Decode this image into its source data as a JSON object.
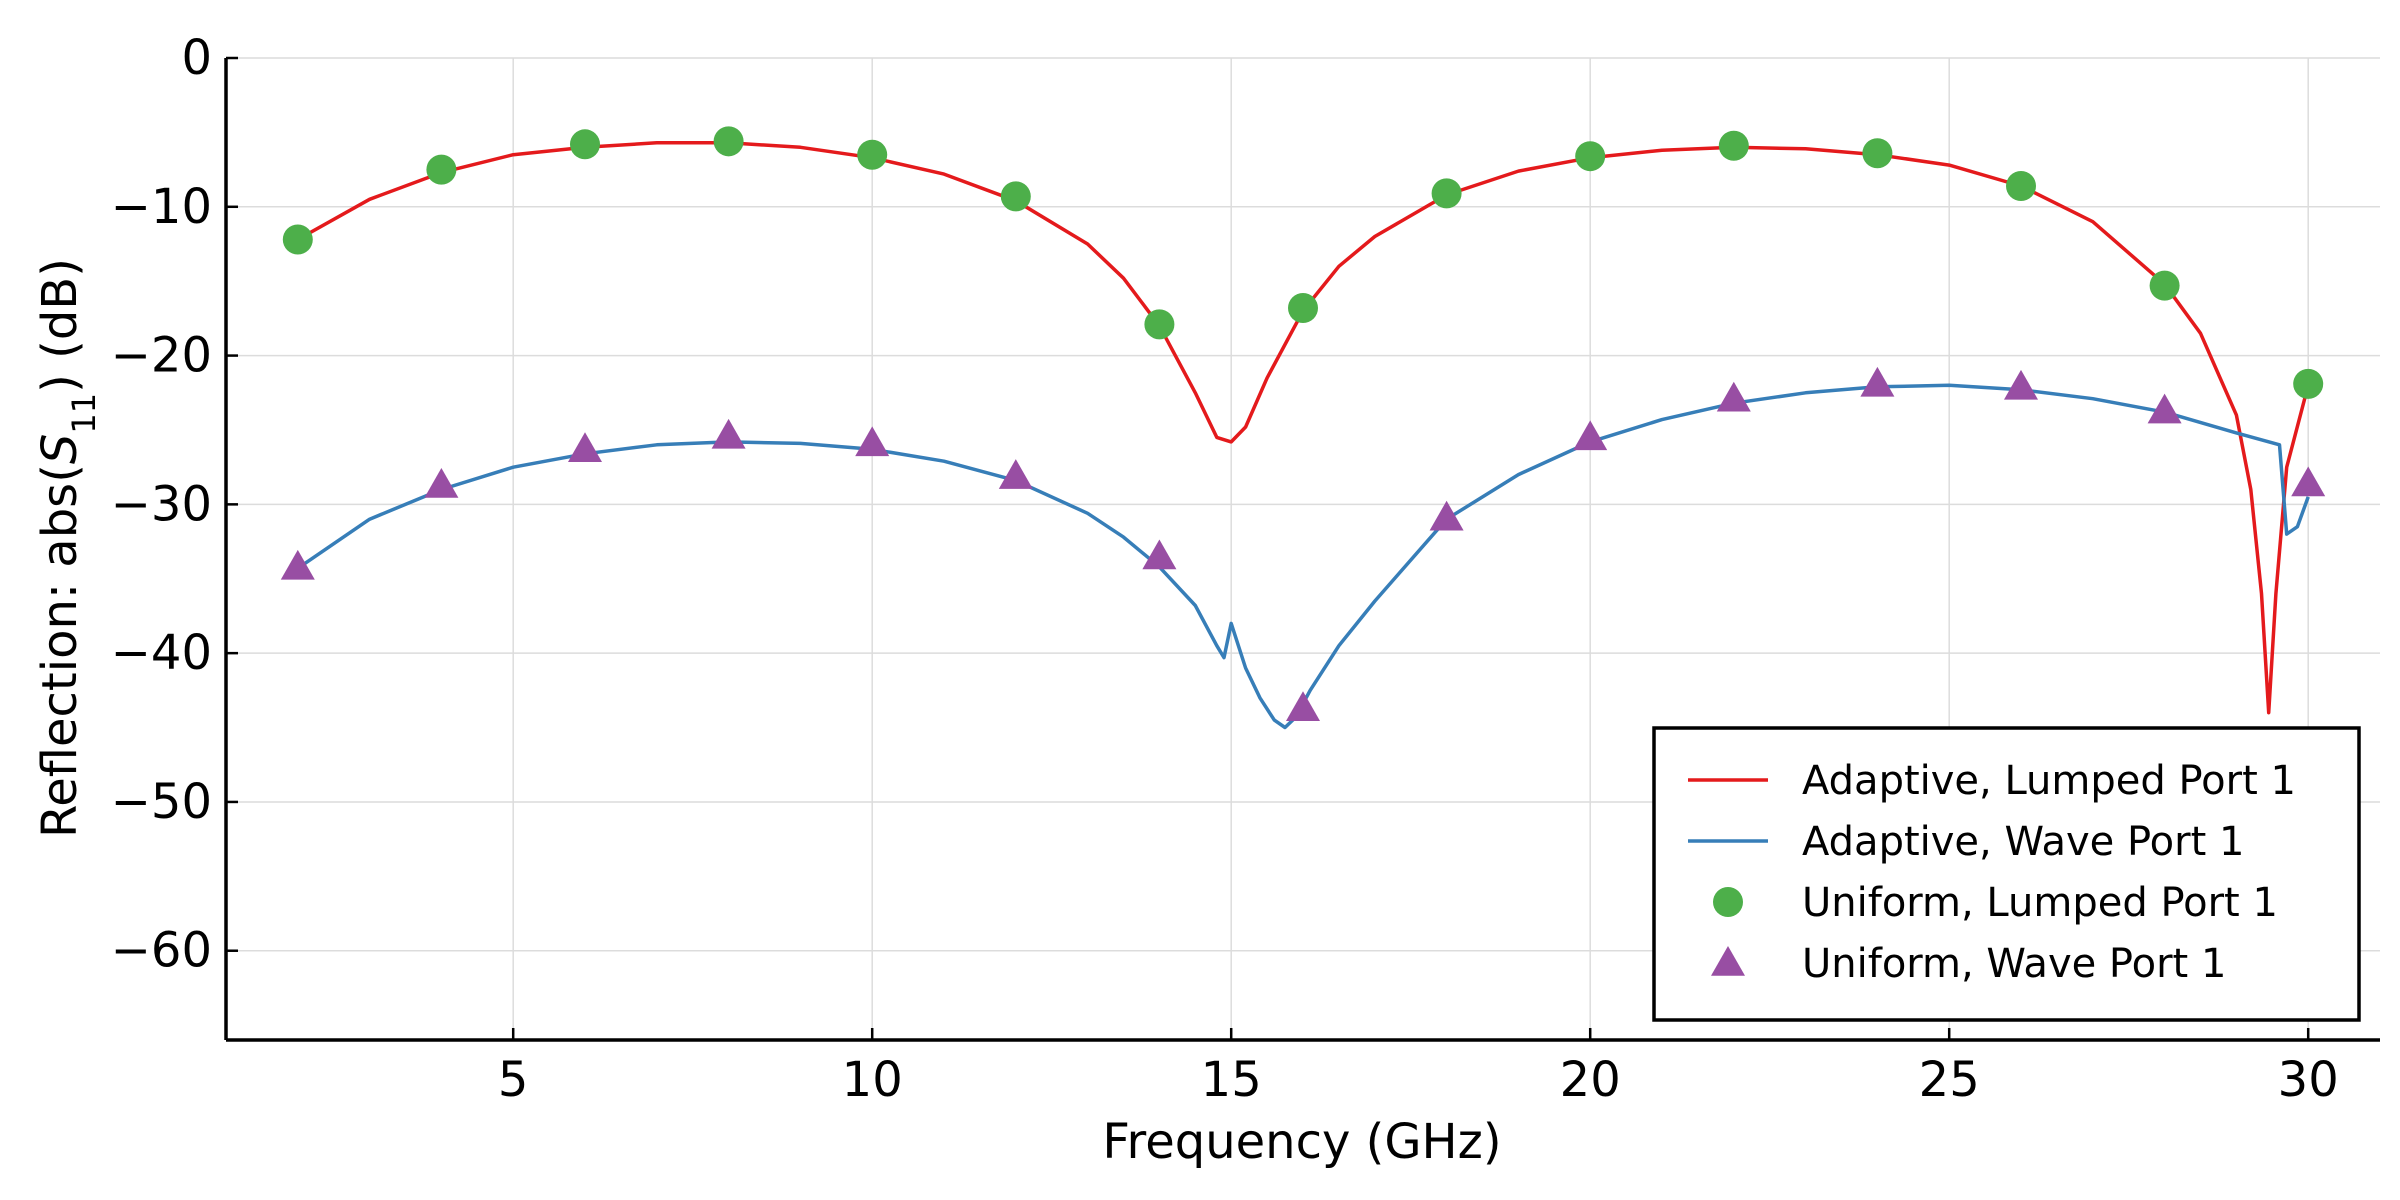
{
  "chart_data": {
    "type": "line",
    "xlabel": "Frequency  (GHz)",
    "ylabel_prefix": "Reflection: abs(",
    "ylabel_symbol": "S",
    "ylabel_subscript": "11",
    "ylabel_suffix": ")  (dB)",
    "xlim": [
      1,
      31
    ],
    "ylim": [
      -66,
      0
    ],
    "xticks": [
      5,
      10,
      15,
      20,
      25,
      30
    ],
    "yticks": [
      0,
      -10,
      -20,
      -30,
      -40,
      -50,
      -60
    ],
    "xtick_labels": [
      "5",
      "10",
      "15",
      "20",
      "25",
      "30"
    ],
    "ytick_labels": [
      "0",
      "−10",
      "−20",
      "−30",
      "−40",
      "−50",
      "−60"
    ],
    "grid": true,
    "legend_position": "bottom-right",
    "series": [
      {
        "name": "Adaptive, Lumped Port 1",
        "kind": "line",
        "color": "#e41a1c",
        "x": [
          2,
          3,
          4,
          5,
          6,
          7,
          8,
          9,
          10,
          11,
          12,
          13,
          13.5,
          14,
          14.5,
          14.8,
          15,
          15.2,
          15.5,
          16,
          16.5,
          17,
          18,
          19,
          20,
          21,
          22,
          23,
          24,
          25,
          26,
          27,
          28,
          28.5,
          29,
          29.2,
          29.35,
          29.45,
          29.55,
          29.7,
          30
        ],
        "y": [
          -12.2,
          -9.5,
          -7.7,
          -6.5,
          -6.0,
          -5.7,
          -5.7,
          -6.0,
          -6.7,
          -7.8,
          -9.6,
          -12.5,
          -14.8,
          -18.0,
          -22.5,
          -25.5,
          -25.8,
          -24.8,
          -21.5,
          -17.0,
          -14.0,
          -12.0,
          -9.2,
          -7.6,
          -6.7,
          -6.2,
          -6.0,
          -6.1,
          -6.5,
          -7.2,
          -8.6,
          -11.0,
          -15.2,
          -18.5,
          -24.0,
          -29.0,
          -36.0,
          -44.0,
          -36.0,
          -27.5,
          -22.0
        ]
      },
      {
        "name": "Adaptive, Wave Port 1",
        "kind": "line",
        "color": "#377eb8",
        "x": [
          2,
          3,
          4,
          5,
          6,
          7,
          8,
          9,
          10,
          11,
          12,
          13,
          13.5,
          14,
          14.5,
          14.8,
          14.9,
          15.0,
          15.2,
          15.4,
          15.6,
          15.75,
          15.9,
          16.1,
          16.5,
          17,
          18,
          19,
          20,
          21,
          22,
          23,
          24,
          25,
          26,
          27,
          28,
          29,
          29.6,
          29.7,
          29.85,
          30
        ],
        "y": [
          -34.3,
          -31.0,
          -29.0,
          -27.5,
          -26.6,
          -26.0,
          -25.8,
          -25.9,
          -26.3,
          -27.1,
          -28.4,
          -30.6,
          -32.2,
          -34.2,
          -36.8,
          -39.5,
          -40.3,
          -38.0,
          -41.0,
          -43.0,
          -44.5,
          -45.0,
          -44.3,
          -42.5,
          -39.5,
          -36.5,
          -31.0,
          -28.0,
          -25.8,
          -24.3,
          -23.2,
          -22.5,
          -22.1,
          -22.0,
          -22.3,
          -22.9,
          -23.8,
          -25.2,
          -26.0,
          -32.0,
          -31.5,
          -29.5
        ]
      },
      {
        "name": "Uniform, Lumped Port 1",
        "kind": "marker",
        "marker": "circle",
        "color": "#4daf4a",
        "x": [
          2,
          4,
          6,
          8,
          10,
          12,
          14,
          16,
          18,
          20,
          22,
          24,
          26,
          28,
          30
        ],
        "y": [
          -12.2,
          -7.5,
          -5.8,
          -5.6,
          -6.5,
          -9.3,
          -17.9,
          -16.8,
          -9.1,
          -6.6,
          -5.9,
          -6.4,
          -8.6,
          -15.3,
          -21.9
        ]
      },
      {
        "name": "Uniform, Wave Port 1",
        "kind": "marker",
        "marker": "triangle",
        "color": "#984ea3",
        "x": [
          2,
          4,
          6,
          8,
          10,
          12,
          14,
          16,
          18,
          20,
          22,
          24,
          26,
          28,
          30
        ],
        "y": [
          -34.2,
          -28.7,
          -26.3,
          -25.4,
          -25.9,
          -28.1,
          -33.5,
          -43.7,
          -30.9,
          -25.5,
          -22.9,
          -21.9,
          -22.1,
          -23.7,
          -28.6
        ]
      }
    ]
  }
}
